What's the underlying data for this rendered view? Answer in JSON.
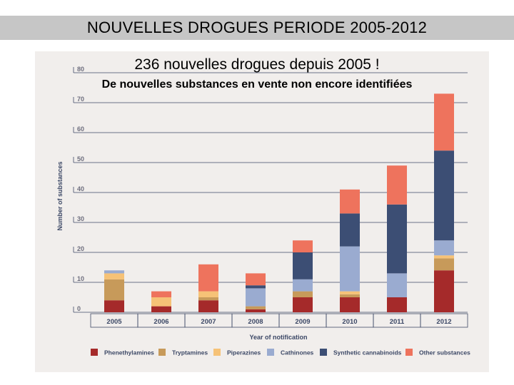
{
  "header": {
    "title": "NOUVELLES DROGUES PERIODE 2005-2012"
  },
  "subtitles": {
    "main": "236 nouvelles drogues depuis 2005 !",
    "secondary": "De nouvelles substances en vente non encore identifiées"
  },
  "chart_data": {
    "type": "bar",
    "stacked": true,
    "categories": [
      "2005",
      "2006",
      "2007",
      "2008",
      "2009",
      "2010",
      "2011",
      "2012"
    ],
    "series": [
      {
        "name": "Phenethylamines",
        "color": "#a52a2a",
        "values": [
          4,
          2,
          4,
          1,
          5,
          5,
          5,
          14
        ]
      },
      {
        "name": "Tryptamines",
        "color": "#c79a5a",
        "values": [
          7,
          0,
          1,
          1,
          2,
          1,
          0,
          4
        ]
      },
      {
        "name": "Piperazines",
        "color": "#f6c277",
        "values": [
          2,
          3,
          2,
          0,
          0,
          1,
          0,
          1
        ]
      },
      {
        "name": "Cathinones",
        "color": "#9aabd0",
        "values": [
          1,
          0,
          0,
          6,
          4,
          15,
          8,
          5
        ]
      },
      {
        "name": "Synthetic cannabinoids",
        "color": "#3c4e74",
        "values": [
          0,
          0,
          0,
          1,
          9,
          11,
          23,
          30
        ]
      },
      {
        "name": "Other substances",
        "color": "#ee735d",
        "values": [
          0,
          2,
          9,
          4,
          4,
          8,
          13,
          19
        ]
      }
    ],
    "title": "236 nouvelles drogues depuis 2005 !",
    "xlabel": "Year of notification",
    "ylabel": "Number of substances",
    "yticks": [
      "0",
      "10",
      "20",
      "30",
      "40",
      "50",
      "60",
      "70",
      "80"
    ],
    "ylim": [
      0,
      80
    ],
    "legend": "bottom"
  }
}
